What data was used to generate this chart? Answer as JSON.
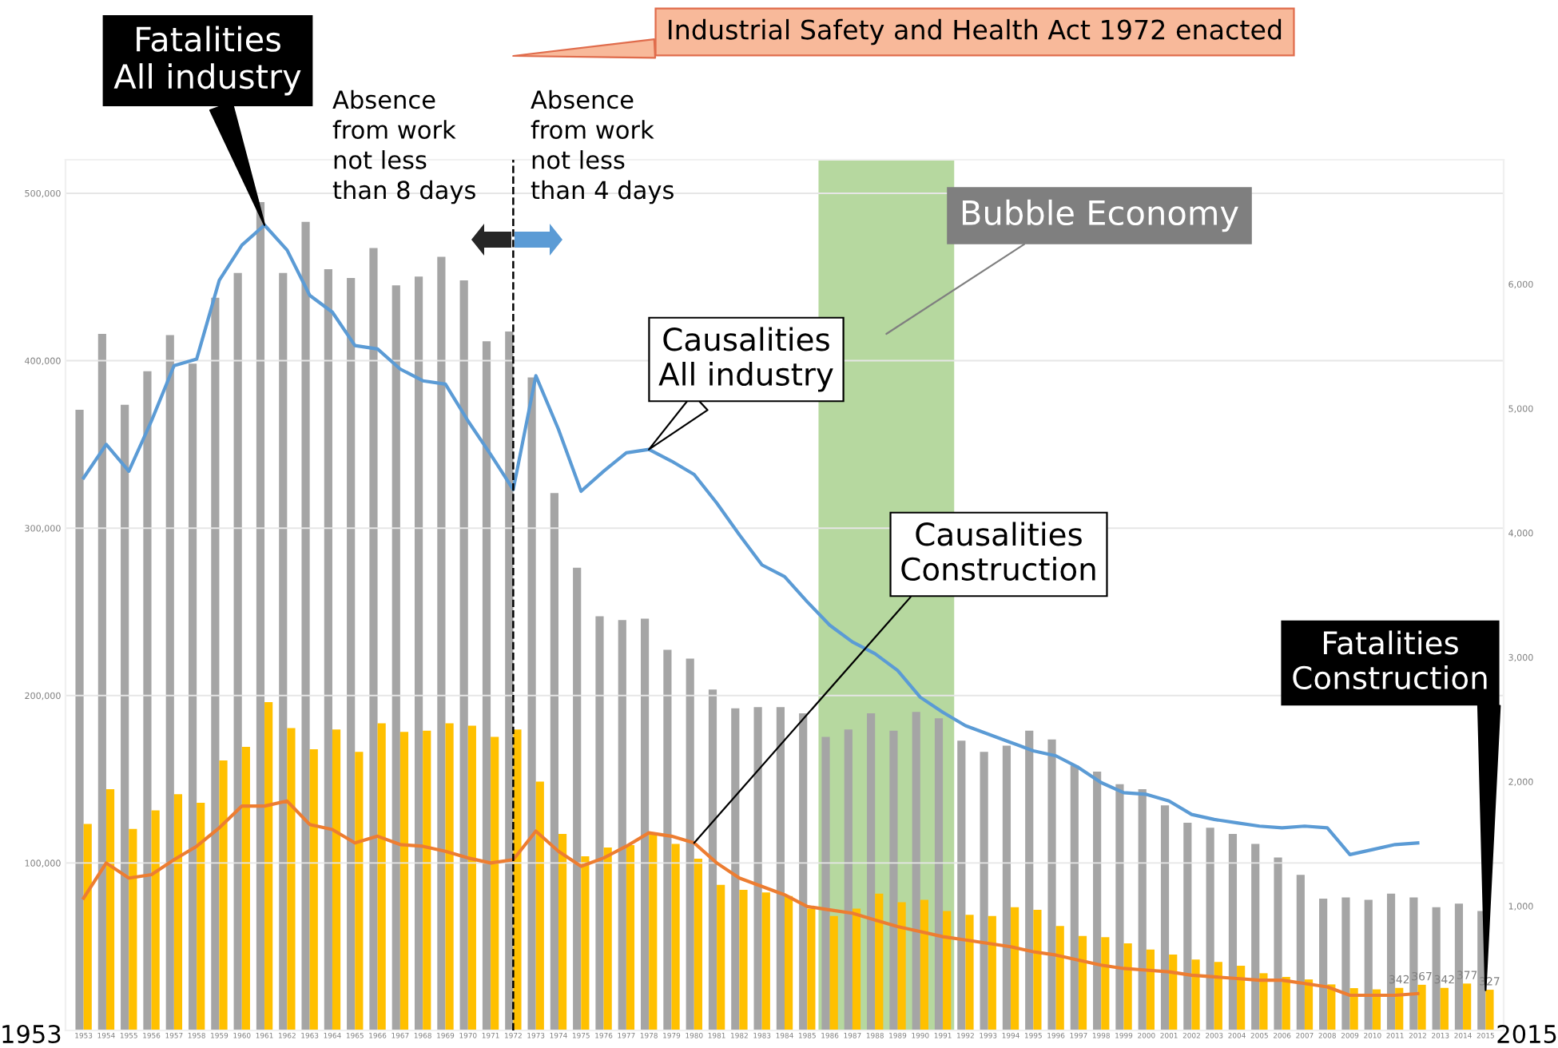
{
  "chart_data": {
    "type": "bar",
    "categories": [
      "1953",
      "1954",
      "1955",
      "1956",
      "1957",
      "1958",
      "1959",
      "1960",
      "1961",
      "1962",
      "1963",
      "1964",
      "1965",
      "1966",
      "1967",
      "1968",
      "1969",
      "1970",
      "1971",
      "1972",
      "1973",
      "1974",
      "1975",
      "1976",
      "1977",
      "1978",
      "1979",
      "1980",
      "1981",
      "1982",
      "1983",
      "1984",
      "1985",
      "1986",
      "1987",
      "1988",
      "1989",
      "1990",
      "1991",
      "1992",
      "1993",
      "1994",
      "1995",
      "1996",
      "1997",
      "1998",
      "1999",
      "2000",
      "2001",
      "2002",
      "2003",
      "2004",
      "2005",
      "2006",
      "2007",
      "2008",
      "2009",
      "2010",
      "2011",
      "2012",
      "2013",
      "2014",
      "2015"
    ],
    "series": [
      {
        "axis": "y2",
        "color": "#a5a5a5",
        "values": [
          4990,
          5600,
          5030,
          5300,
          5590,
          5360,
          5890,
          6090,
          6660,
          6090,
          6500,
          6120,
          6050,
          6290,
          5990,
          6060,
          6220,
          6030,
          5540,
          5620,
          5250,
          4320,
          3720,
          3330,
          3300,
          3310,
          3060,
          2990,
          2740,
          2590,
          2600,
          2600,
          2550,
          2360,
          2420,
          2550,
          2410,
          2560,
          2510,
          2330,
          2240,
          2290,
          2410,
          2340,
          2130,
          2080,
          1980,
          1940,
          1810,
          1670,
          1630,
          1580,
          1500,
          1390,
          1250,
          1060,
          1070,
          1050,
          1100,
          1070,
          990,
          1020,
          960
        ]
      },
      {
        "axis": "y2",
        "color": "#ffc000",
        "values": [
          1660,
          1940,
          1620,
          1770,
          1900,
          1830,
          2170,
          2280,
          2640,
          2430,
          2260,
          2420,
          2240,
          2470,
          2400,
          2410,
          2470,
          2450,
          2360,
          2420,
          2000,
          1580,
          1400,
          1470,
          1490,
          1590,
          1500,
          1380,
          1170,
          1130,
          1110,
          1080,
          980,
          920,
          980,
          1100,
          1030,
          1050,
          960,
          930,
          920,
          990,
          970,
          840,
          760,
          750,
          700,
          650,
          610,
          570,
          550,
          520,
          460,
          430,
          410,
          370,
          340,
          330,
          342,
          367,
          342,
          377,
          327
        ],
        "value_labels": [
          null,
          null,
          null,
          null,
          null,
          null,
          null,
          null,
          null,
          null,
          null,
          null,
          null,
          null,
          null,
          null,
          null,
          null,
          null,
          null,
          null,
          null,
          null,
          null,
          null,
          null,
          null,
          null,
          null,
          null,
          null,
          null,
          null,
          null,
          null,
          null,
          null,
          null,
          null,
          null,
          null,
          null,
          null,
          null,
          null,
          null,
          null,
          null,
          null,
          null,
          null,
          null,
          null,
          null,
          null,
          null,
          null,
          null,
          "342",
          "367",
          "342",
          "377",
          "327"
        ]
      },
      {
        "type": "line",
        "color": "#5b9bd5",
        "values": [
          330000,
          350000,
          334000,
          364000,
          397000,
          401000,
          448000,
          469000,
          481000,
          466000,
          439000,
          429000,
          409000,
          407000,
          395000,
          388000,
          386000,
          364000,
          344000,
          323000,
          391000,
          359000,
          322000,
          334000,
          345000,
          347000,
          340000,
          332000,
          315000,
          296000,
          278000,
          271000,
          256000,
          242000,
          232000,
          225000,
          215000,
          199000,
          190000,
          182000,
          177000,
          172000,
          167000,
          164000,
          157000,
          148000,
          142000,
          141000,
          137000,
          129000,
          126000,
          124000,
          122000,
          121000,
          122000,
          121000,
          105000,
          108000,
          111000,
          112000,
          null,
          null,
          null
        ]
      },
      {
        "type": "line",
        "color": "#ed7d31",
        "values": [
          79000,
          100000,
          91000,
          93000,
          102000,
          110000,
          121000,
          134000,
          134000,
          137000,
          123000,
          120000,
          112000,
          116000,
          111000,
          110000,
          107000,
          103000,
          100000,
          102000,
          119000,
          107000,
          98000,
          103000,
          110000,
          118000,
          116000,
          112000,
          100000,
          91000,
          86000,
          81000,
          74000,
          72000,
          70000,
          66000,
          62000,
          59000,
          56000,
          54000,
          52000,
          50000,
          47000,
          45000,
          42000,
          39000,
          37000,
          36000,
          35000,
          33000,
          32000,
          31000,
          30000,
          30000,
          28000,
          26000,
          21000,
          21000,
          21000,
          22000,
          null,
          null,
          null
        ]
      }
    ],
    "ylim": [
      0,
      520000
    ],
    "yticks": [
      {
        "value": 100000,
        "label": "100,000"
      },
      {
        "value": 200000,
        "label": "200,000"
      },
      {
        "value": 300000,
        "label": "300,000"
      },
      {
        "value": 400000,
        "label": "400,000"
      },
      {
        "value": 500000,
        "label": "500,000"
      }
    ],
    "y2lim": [
      0,
      7000
    ],
    "y2ticks": [
      {
        "value": 1000,
        "label": "1,000"
      },
      {
        "value": 2000,
        "label": "2,000"
      },
      {
        "value": 3000,
        "label": "3,000"
      },
      {
        "value": 4000,
        "label": "4,000"
      },
      {
        "value": 5000,
        "label": "5,000"
      },
      {
        "value": 6000,
        "label": "6,000"
      }
    ],
    "grid": "y",
    "ref_lines": [
      {
        "axis": "x",
        "value": "1972",
        "label": "Industrial Safety and Health Act 1972 enacted",
        "color": "#000000",
        "line_style": "dashed"
      }
    ],
    "bands": [
      {
        "axis": "x",
        "from": "1986",
        "to": "1991",
        "label": "Bubble Economy",
        "color": "#a9d18e"
      }
    ],
    "annotations": [
      {
        "text": "Fatalities\nAll industry",
        "x": "1961",
        "y": 481000
      },
      "Absence\nfrom work\nnot less\nthan 8 days",
      "Absence\nfrom work\nnot less\nthan 4 days",
      {
        "text": "Causalities\nAll industry",
        "x": "1978",
        "y": 347000
      },
      {
        "text": "Causalities\nConstruction",
        "x": "1980",
        "y": 112000
      },
      {
        "text": "Fatalities\nConstruction",
        "x": "2015",
        "y": 24000
      },
      "1953",
      "2015"
    ]
  }
}
